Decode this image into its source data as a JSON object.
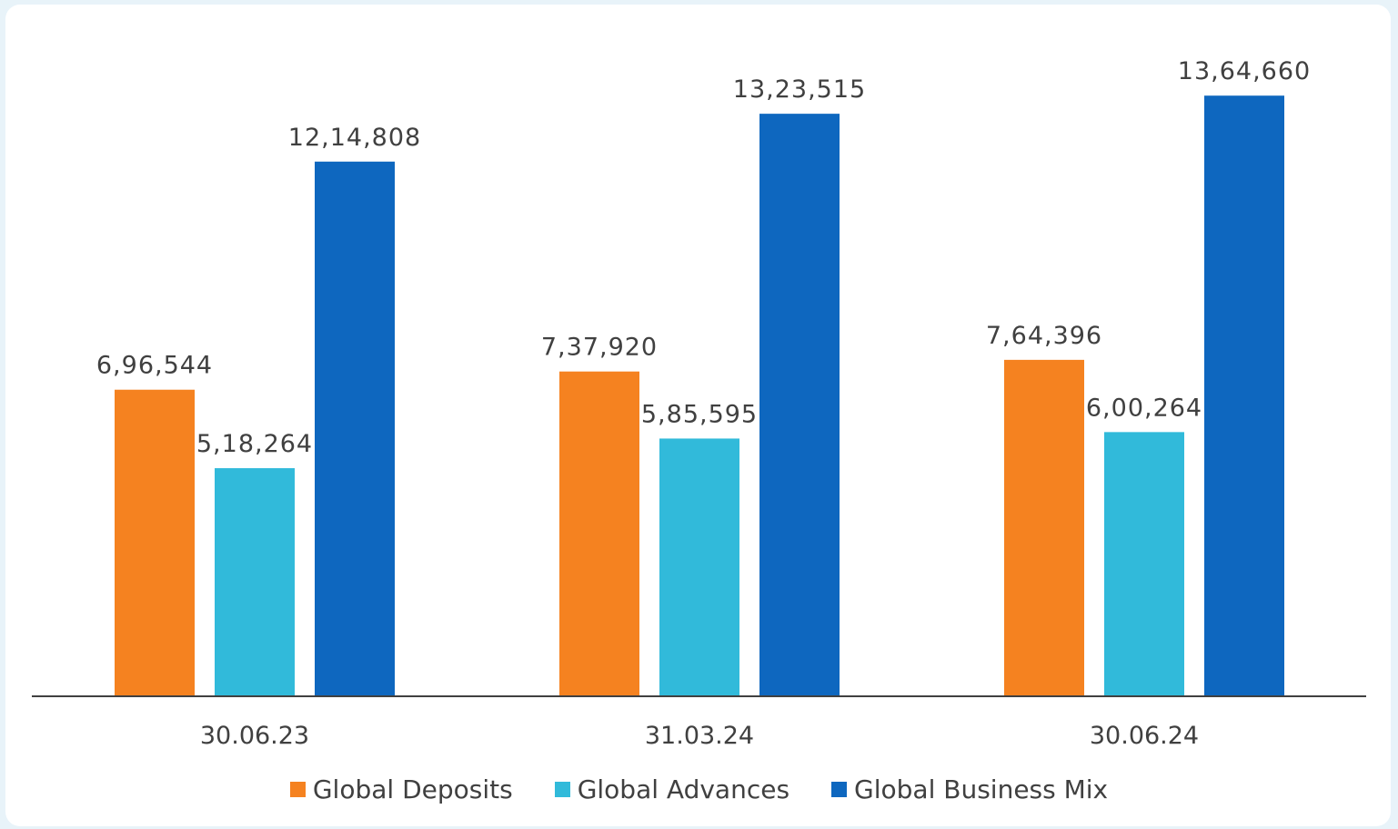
{
  "chart_data": {
    "type": "bar",
    "categories": [
      "30.06.23",
      "31.03.24",
      "30.06.24"
    ],
    "series": [
      {
        "name": "Global Deposits",
        "color": "#f58220",
        "values": [
          696544,
          737920,
          764396
        ],
        "labels": [
          "6,96,544",
          "7,37,920",
          "7,64,396"
        ]
      },
      {
        "name": "Global Advances",
        "color": "#31bada",
        "values": [
          518264,
          585595,
          600264
        ],
        "labels": [
          "5,18,264",
          "5,85,595",
          "6,00,264"
        ]
      },
      {
        "name": "Global Business Mix",
        "color": "#0e67bf",
        "values": [
          1214808,
          1323515,
          1364660
        ],
        "labels": [
          "12,14,808",
          "13,23,515",
          "13,64,660"
        ]
      }
    ],
    "ylim": [
      0,
      1520000
    ],
    "legend_position": "bottom",
    "grid": false
  }
}
